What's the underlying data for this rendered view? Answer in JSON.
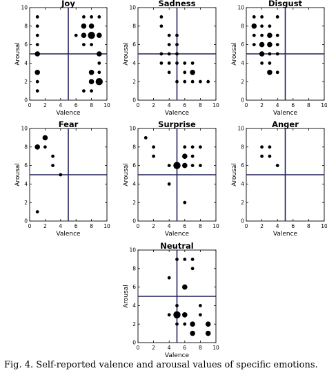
{
  "figure": {
    "caption": "Fig. 4. Self-reported valence and arousal values of specific emotions."
  },
  "chart_data": [
    {
      "type": "scatter",
      "title": "Joy",
      "xlabel": "Valence",
      "ylabel": "Arousal",
      "xlim": [
        0,
        10
      ],
      "ylim": [
        0,
        10
      ],
      "xticks": [
        "0",
        "2",
        "4",
        "6",
        "8",
        "10"
      ],
      "yticks": [
        "0",
        "2",
        "4",
        "6",
        "8",
        "10"
      ],
      "crosshair": {
        "x": 5,
        "y": 5
      },
      "points": [
        {
          "x": 1,
          "y": 9,
          "size": 1
        },
        {
          "x": 1,
          "y": 8,
          "size": 1
        },
        {
          "x": 1,
          "y": 7,
          "size": 1
        },
        {
          "x": 1,
          "y": 6,
          "size": 1
        },
        {
          "x": 1,
          "y": 5,
          "size": 2
        },
        {
          "x": 1,
          "y": 3,
          "size": 2
        },
        {
          "x": 1,
          "y": 2,
          "size": 1
        },
        {
          "x": 1,
          "y": 1,
          "size": 1
        },
        {
          "x": 7,
          "y": 9,
          "size": 1
        },
        {
          "x": 8,
          "y": 9,
          "size": 1
        },
        {
          "x": 9,
          "y": 9,
          "size": 1
        },
        {
          "x": 7,
          "y": 8,
          "size": 2
        },
        {
          "x": 8,
          "y": 8,
          "size": 2
        },
        {
          "x": 6,
          "y": 7,
          "size": 1
        },
        {
          "x": 7,
          "y": 7,
          "size": 2
        },
        {
          "x": 8,
          "y": 7,
          "size": 3
        },
        {
          "x": 9,
          "y": 7,
          "size": 2
        },
        {
          "x": 7,
          "y": 6,
          "size": 1
        },
        {
          "x": 8,
          "y": 6,
          "size": 1
        },
        {
          "x": 9,
          "y": 5,
          "size": 2
        },
        {
          "x": 9,
          "y": 4,
          "size": 1
        },
        {
          "x": 8,
          "y": 3,
          "size": 2
        },
        {
          "x": 9,
          "y": 3,
          "size": 1
        },
        {
          "x": 8,
          "y": 2,
          "size": 2
        },
        {
          "x": 9,
          "y": 2,
          "size": 3
        },
        {
          "x": 7,
          "y": 1,
          "size": 1
        },
        {
          "x": 8,
          "y": 1,
          "size": 1
        }
      ]
    },
    {
      "type": "scatter",
      "title": "Sadness",
      "xlabel": "Valence",
      "ylabel": "Arousal",
      "xlim": [
        0,
        10
      ],
      "ylim": [
        0,
        10
      ],
      "xticks": [
        "0",
        "2",
        "4",
        "6",
        "8",
        "10"
      ],
      "yticks": [
        "0",
        "2",
        "4",
        "6",
        "8",
        "10"
      ],
      "crosshair": {
        "x": 5,
        "y": 5
      },
      "points": [
        {
          "x": 3,
          "y": 9,
          "size": 1
        },
        {
          "x": 3,
          "y": 8,
          "size": 1
        },
        {
          "x": 4,
          "y": 7,
          "size": 1
        },
        {
          "x": 5,
          "y": 7,
          "size": 1
        },
        {
          "x": 4,
          "y": 6,
          "size": 1
        },
        {
          "x": 5,
          "y": 6,
          "size": 1
        },
        {
          "x": 3,
          "y": 5,
          "size": 1
        },
        {
          "x": 4,
          "y": 5,
          "size": 1
        },
        {
          "x": 5,
          "y": 5,
          "size": 1
        },
        {
          "x": 3,
          "y": 4,
          "size": 1
        },
        {
          "x": 4,
          "y": 4,
          "size": 1
        },
        {
          "x": 5,
          "y": 4,
          "size": 1
        },
        {
          "x": 6,
          "y": 4,
          "size": 1
        },
        {
          "x": 7,
          "y": 4,
          "size": 1
        },
        {
          "x": 4,
          "y": 3,
          "size": 1
        },
        {
          "x": 6,
          "y": 3,
          "size": 1
        },
        {
          "x": 7,
          "y": 3,
          "size": 2
        },
        {
          "x": 5,
          "y": 2,
          "size": 1
        },
        {
          "x": 6,
          "y": 2,
          "size": 1
        },
        {
          "x": 7,
          "y": 2,
          "size": 1
        },
        {
          "x": 8,
          "y": 2,
          "size": 1
        },
        {
          "x": 9,
          "y": 2,
          "size": 1
        }
      ]
    },
    {
      "type": "scatter",
      "title": "Disgust",
      "xlabel": "Valence",
      "ylabel": "Arousal",
      "xlim": [
        0,
        10
      ],
      "ylim": [
        0,
        10
      ],
      "xticks": [
        "0",
        "2",
        "4",
        "6",
        "8",
        "10"
      ],
      "yticks": [
        "0",
        "2",
        "4",
        "6",
        "8",
        "10"
      ],
      "crosshair": {
        "x": 5,
        "y": 5
      },
      "points": [
        {
          "x": 1,
          "y": 9,
          "size": 1
        },
        {
          "x": 2,
          "y": 9,
          "size": 1
        },
        {
          "x": 4,
          "y": 9,
          "size": 1
        },
        {
          "x": 1,
          "y": 8,
          "size": 2
        },
        {
          "x": 2,
          "y": 8,
          "size": 1
        },
        {
          "x": 3,
          "y": 8,
          "size": 1
        },
        {
          "x": 1,
          "y": 7,
          "size": 1
        },
        {
          "x": 2,
          "y": 7,
          "size": 1
        },
        {
          "x": 3,
          "y": 7,
          "size": 2
        },
        {
          "x": 4,
          "y": 7,
          "size": 1
        },
        {
          "x": 1,
          "y": 6,
          "size": 1
        },
        {
          "x": 2,
          "y": 6,
          "size": 2
        },
        {
          "x": 3,
          "y": 6,
          "size": 2
        },
        {
          "x": 4,
          "y": 6,
          "size": 1
        },
        {
          "x": 2,
          "y": 5,
          "size": 2
        },
        {
          "x": 3,
          "y": 5,
          "size": 1
        },
        {
          "x": 4,
          "y": 5,
          "size": 1
        },
        {
          "x": 2,
          "y": 4,
          "size": 1
        },
        {
          "x": 3,
          "y": 4,
          "size": 1
        },
        {
          "x": 3,
          "y": 3,
          "size": 2
        },
        {
          "x": 4,
          "y": 3,
          "size": 1
        }
      ]
    },
    {
      "type": "scatter",
      "title": "Fear",
      "xlabel": "Valence",
      "ylabel": "Arousal",
      "xlim": [
        0,
        10
      ],
      "ylim": [
        0,
        10
      ],
      "xticks": [
        "0",
        "2",
        "4",
        "6",
        "8",
        "10"
      ],
      "yticks": [
        "0",
        "2",
        "4",
        "6",
        "8",
        "10"
      ],
      "crosshair": {
        "x": 5,
        "y": 5
      },
      "points": [
        {
          "x": 2,
          "y": 9,
          "size": 2
        },
        {
          "x": 1,
          "y": 8,
          "size": 2
        },
        {
          "x": 2,
          "y": 8,
          "size": 1
        },
        {
          "x": 3,
          "y": 7,
          "size": 1
        },
        {
          "x": 3,
          "y": 6,
          "size": 1
        },
        {
          "x": 4,
          "y": 5,
          "size": 1
        },
        {
          "x": 1,
          "y": 1,
          "size": 1
        }
      ]
    },
    {
      "type": "scatter",
      "title": "Surprise",
      "xlabel": "Valence",
      "ylabel": "Arousal",
      "xlim": [
        0,
        10
      ],
      "ylim": [
        0,
        10
      ],
      "xticks": [
        "0",
        "2",
        "4",
        "6",
        "8",
        "10"
      ],
      "yticks": [
        "0",
        "2",
        "4",
        "6",
        "8",
        "10"
      ],
      "crosshair": {
        "x": 5,
        "y": 5
      },
      "points": [
        {
          "x": 1,
          "y": 9,
          "size": 1
        },
        {
          "x": 2,
          "y": 8,
          "size": 1
        },
        {
          "x": 6,
          "y": 8,
          "size": 1
        },
        {
          "x": 7,
          "y": 8,
          "size": 1
        },
        {
          "x": 8,
          "y": 8,
          "size": 1
        },
        {
          "x": 2,
          "y": 7,
          "size": 1
        },
        {
          "x": 6,
          "y": 7,
          "size": 2
        },
        {
          "x": 7,
          "y": 7,
          "size": 1
        },
        {
          "x": 4,
          "y": 6,
          "size": 1
        },
        {
          "x": 5,
          "y": 6,
          "size": 3
        },
        {
          "x": 6,
          "y": 6,
          "size": 2
        },
        {
          "x": 7,
          "y": 6,
          "size": 1
        },
        {
          "x": 8,
          "y": 6,
          "size": 1
        },
        {
          "x": 4,
          "y": 4,
          "size": 1
        },
        {
          "x": 6,
          "y": 2,
          "size": 1
        }
      ]
    },
    {
      "type": "scatter",
      "title": "Anger",
      "xlabel": "Valence",
      "ylabel": "Arousal",
      "xlim": [
        0,
        10
      ],
      "ylim": [
        0,
        10
      ],
      "xticks": [
        "0",
        "2",
        "4",
        "6",
        "8",
        "10"
      ],
      "yticks": [
        "0",
        "2",
        "4",
        "6",
        "8",
        "10"
      ],
      "crosshair": {
        "x": 5,
        "y": 5
      },
      "points": [
        {
          "x": 2,
          "y": 8,
          "size": 1
        },
        {
          "x": 3,
          "y": 8,
          "size": 1
        },
        {
          "x": 2,
          "y": 7,
          "size": 1
        },
        {
          "x": 3,
          "y": 7,
          "size": 1
        },
        {
          "x": 4,
          "y": 6,
          "size": 1
        }
      ]
    },
    {
      "type": "scatter",
      "title": "Neutral",
      "xlabel": "Valence",
      "ylabel": "Arousal",
      "xlim": [
        0,
        10
      ],
      "ylim": [
        0,
        10
      ],
      "xticks": [
        "0",
        "2",
        "4",
        "6",
        "8",
        "10"
      ],
      "yticks": [
        "0",
        "2",
        "4",
        "6",
        "8",
        "10"
      ],
      "crosshair": {
        "x": 5,
        "y": 5
      },
      "points": [
        {
          "x": 5,
          "y": 9,
          "size": 1
        },
        {
          "x": 6,
          "y": 9,
          "size": 1
        },
        {
          "x": 7,
          "y": 9,
          "size": 1
        },
        {
          "x": 7,
          "y": 8,
          "size": 1
        },
        {
          "x": 4,
          "y": 7,
          "size": 1
        },
        {
          "x": 6,
          "y": 6,
          "size": 2
        },
        {
          "x": 5,
          "y": 4,
          "size": 1
        },
        {
          "x": 8,
          "y": 4,
          "size": 1
        },
        {
          "x": 4,
          "y": 3,
          "size": 1
        },
        {
          "x": 5,
          "y": 3,
          "size": 3
        },
        {
          "x": 6,
          "y": 3,
          "size": 2
        },
        {
          "x": 8,
          "y": 3,
          "size": 1
        },
        {
          "x": 5,
          "y": 2,
          "size": 1
        },
        {
          "x": 6,
          "y": 2,
          "size": 1
        },
        {
          "x": 7,
          "y": 2,
          "size": 2
        },
        {
          "x": 9,
          "y": 2,
          "size": 2
        },
        {
          "x": 7,
          "y": 1,
          "size": 2
        },
        {
          "x": 9,
          "y": 1,
          "size": 2
        }
      ]
    }
  ]
}
